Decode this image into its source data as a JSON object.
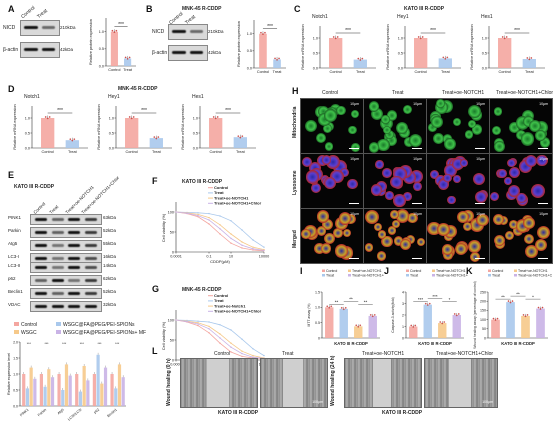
{
  "panels": {
    "A": {
      "letter": "A",
      "blot_labels": [
        "Control",
        "Treat"
      ],
      "row_labels": [
        "NICD",
        "β-actin"
      ],
      "size_labels": [
        "210kDa",
        "42kDa"
      ],
      "ylabel": "Relative protein expression",
      "categories": [
        "Control",
        "Treat"
      ],
      "sig": "***"
    },
    "B": {
      "letter": "B",
      "title": "MNK-45 R-CDDP",
      "blot_labels": [
        "Control",
        "Treat"
      ],
      "row_labels": [
        "NICD",
        "β-actin"
      ],
      "size_labels": [
        "210kDa",
        "42kDa"
      ],
      "ylabel": "Relative protein expression",
      "categories": [
        "Control",
        "Treat"
      ],
      "sig": "***"
    },
    "C": {
      "letter": "C",
      "title": "KATO III R-CDDP",
      "genes": [
        "Notch1",
        "Hey1",
        "Hes1"
      ],
      "ylabel": "Relative mRNA expression",
      "categories": [
        "Control",
        "Treat"
      ],
      "sig": "***"
    },
    "D": {
      "letter": "D",
      "title": "MNK-45 R-CDDP",
      "genes": [
        "Notch1",
        "Hey1",
        "Hes1"
      ],
      "ylabel": "Relative mRNA expression",
      "categories": [
        "Control",
        "Treat"
      ],
      "sig": "***"
    },
    "E": {
      "letter": "E",
      "title": "KATO III R-CDDP",
      "lane_labels": [
        "Control",
        "Treat",
        "Treat+oe-NOTCH1",
        "Treat+oe-NOTCH1+Chlor"
      ],
      "rows": [
        {
          "name": "PINK1",
          "size": "63kDa"
        },
        {
          "name": "Parkin",
          "size": "52kDa"
        },
        {
          "name": "Atg5",
          "size": "55kDa"
        },
        {
          "name": "LC3-I",
          "size": "16kDa"
        },
        {
          "name": "LC3-II",
          "size": "14kDa"
        },
        {
          "name": "p62",
          "size": "62kDa"
        },
        {
          "name": "Beclin1",
          "size": "52kDa"
        },
        {
          "name": "VDAC",
          "size": "32kDa"
        }
      ],
      "legend": [
        "Control",
        "WSGC@FA@PEG/PEI-SPIONs",
        "WSGC",
        "WSGC@FA@PEG/PEI-SPIONs+ MF"
      ],
      "ylabel": "Relative expression level",
      "categories": [
        "PINK1",
        "Parkin",
        "Atg5",
        "LC3II/LC3I",
        "p62",
        "Beclin1"
      ]
    },
    "F": {
      "letter": "F",
      "title": "KATO III R-CDDP",
      "legend": [
        "Control",
        "Treat",
        "Treat+oe-NOTCH1",
        "Treat+oe-NOTCH1+Chlor"
      ],
      "ylabel": "Cell viability (%)",
      "xlabel": "CDDP(μM)",
      "xticks": [
        "0.0001",
        "0.1",
        "10",
        "10000"
      ],
      "yticks": [
        "0",
        "50",
        "100",
        "150"
      ]
    },
    "G": {
      "letter": "G",
      "title": "MNK-45 R-CDDP",
      "legend": [
        "Control",
        "Treat",
        "Treat+oe-Notch1",
        "Treat+oe-NOTCH1+Chlor"
      ],
      "ylabel": "Cell viability (%)",
      "xlabel": "CDDP(μM)",
      "xticks": [
        "0.0001",
        "0.1",
        "10",
        "10000"
      ],
      "yticks": [
        "0",
        "50",
        "100",
        "150"
      ]
    },
    "H": {
      "letter": "H",
      "columns": [
        "Control",
        "Treat",
        "Treat+oe-NOTCH1",
        "Treat+oe-NOTCH1+Chlor"
      ],
      "rows": [
        "Mitochondria",
        "Lysosome",
        "Merged"
      ],
      "scale": "10μm"
    },
    "I": {
      "letter": "I",
      "legend": [
        "Control",
        "Treat",
        "Treat+oe-NOTCH1",
        "Treat+oe-NOTCH1+Chlor"
      ],
      "ylabel": "MTT assay (%)",
      "xlabel": "KATO III R-CDDP",
      "sigs": [
        "**",
        "**",
        "**"
      ]
    },
    "J": {
      "letter": "J",
      "legend": [
        "Control",
        "Treat",
        "Treat+oe-NOTCH1",
        "Treat+oe-NOTCH1+Chlor"
      ],
      "ylabel": "Caspase-3 activity(fold)",
      "xlabel": "KATO III R-CDDP",
      "sigs": [
        "***",
        "***",
        "*"
      ]
    },
    "K": {
      "letter": "K",
      "legend": [
        "Control",
        "Treat",
        "Treat+oe-NOTCH1",
        "Treat+oe-NOTCH1+Chlor"
      ],
      "ylabel": "Wound healing assay (percentage of control)",
      "xlabel": "KATO III R-CDDP",
      "sigs": [
        "**",
        "**",
        "*"
      ]
    },
    "L": {
      "letter": "L",
      "columns": [
        "Control",
        "Treat",
        "Treat+oe-NOTCH1",
        "Treat+oe-NOTCH1+Chlor"
      ],
      "rows": [
        "Wound healing (0 h)",
        "Wound healing (24 h)"
      ],
      "xlabel": "KATO III R-CDDP",
      "scale": "100μm"
    }
  },
  "colors": {
    "control": "#f4a6a0",
    "treat": "#a9c8ec",
    "oe": "#f6c98a",
    "chlor": "#c9b3e6"
  },
  "chart_data": [
    {
      "id": "A",
      "type": "bar",
      "categories": [
        "Control",
        "Treat"
      ],
      "values": [
        1.0,
        0.22
      ],
      "ylim": [
        0,
        1.4
      ]
    },
    {
      "id": "B",
      "type": "bar",
      "categories": [
        "Control",
        "Treat"
      ],
      "values": [
        1.0,
        0.25
      ],
      "ylim": [
        0,
        1.4
      ]
    },
    {
      "id": "C",
      "type": "bar",
      "categories": [
        "Control",
        "Treat"
      ],
      "series": [
        {
          "name": "Notch1",
          "values": [
            1.0,
            0.28
          ]
        },
        {
          "name": "Hey1",
          "values": [
            1.0,
            0.32
          ]
        },
        {
          "name": "Hes1",
          "values": [
            1.0,
            0.3
          ]
        }
      ],
      "ylim": [
        0,
        1.4
      ]
    },
    {
      "id": "D",
      "type": "bar",
      "categories": [
        "Control",
        "Treat"
      ],
      "series": [
        {
          "name": "Notch1",
          "values": [
            1.0,
            0.26
          ]
        },
        {
          "name": "Hey1",
          "values": [
            1.0,
            0.33
          ]
        },
        {
          "name": "Hes1",
          "values": [
            1.0,
            0.36
          ]
        }
      ],
      "ylim": [
        0,
        1.4
      ]
    },
    {
      "id": "E",
      "type": "bar",
      "categories": [
        "PINK1",
        "Parkin",
        "Atg5",
        "LC3II/LC3I",
        "p62",
        "Beclin1"
      ],
      "series": [
        {
          "name": "Control",
          "values": [
            1.0,
            1.0,
            1.0,
            1.0,
            1.0,
            1.0
          ]
        },
        {
          "name": "WSGC@FA@PEG/PEI-SPIONs",
          "values": [
            0.55,
            0.6,
            0.5,
            0.45,
            1.6,
            0.55
          ]
        },
        {
          "name": "WSGC",
          "values": [
            1.2,
            1.15,
            1.3,
            1.25,
            0.7,
            1.3
          ]
        },
        {
          "name": "WSGC@FA@PEG/PEI-SPIONs+ MF",
          "values": [
            0.85,
            0.9,
            0.95,
            0.8,
            1.2,
            0.9
          ]
        }
      ],
      "ylim": [
        0,
        2.0
      ]
    },
    {
      "id": "F",
      "type": "line",
      "x": [
        0.0001,
        0.001,
        0.01,
        0.1,
        1,
        10,
        100,
        1000,
        10000
      ],
      "series": [
        {
          "name": "Control",
          "values": [
            100,
            96,
            88,
            70,
            45,
            22,
            10,
            5,
            3
          ]
        },
        {
          "name": "Treat",
          "values": [
            100,
            99,
            98,
            96,
            90,
            78,
            55,
            30,
            12
          ]
        },
        {
          "name": "Treat+oe-NOTCH1",
          "values": [
            100,
            98,
            94,
            86,
            68,
            45,
            25,
            12,
            6
          ]
        },
        {
          "name": "Treat+oe-NOTCH1+Chlor",
          "values": [
            100,
            97,
            91,
            80,
            58,
            34,
            17,
            8,
            4
          ]
        }
      ],
      "xscale": "log",
      "ylim": [
        0,
        150
      ]
    },
    {
      "id": "G",
      "type": "line",
      "x": [
        0.0001,
        0.001,
        0.01,
        0.1,
        1,
        10,
        100,
        1000,
        10000
      ],
      "series": [
        {
          "name": "Control",
          "values": [
            100,
            95,
            86,
            68,
            42,
            20,
            9,
            5,
            3
          ]
        },
        {
          "name": "Treat",
          "values": [
            100,
            99,
            97,
            95,
            88,
            75,
            52,
            28,
            11
          ]
        },
        {
          "name": "Treat+oe-Notch1",
          "values": [
            100,
            97,
            93,
            84,
            65,
            42,
            22,
            11,
            5
          ]
        },
        {
          "name": "Treat+oe-NOTCH1+Chlor",
          "values": [
            100,
            96,
            90,
            78,
            55,
            32,
            16,
            7,
            4
          ]
        }
      ],
      "xscale": "log",
      "ylim": [
        0,
        150
      ]
    },
    {
      "id": "I",
      "type": "bar",
      "categories": [
        "Control",
        "Treat",
        "Treat+oe-NOTCH1",
        "Treat+oe-NOTCH1+Chlor"
      ],
      "values": [
        1.0,
        0.95,
        0.38,
        0.72
      ],
      "ylim": [
        0,
        1.5
      ]
    },
    {
      "id": "J",
      "type": "bar",
      "categories": [
        "Control",
        "Treat",
        "Treat+oe-NOTCH1",
        "Treat+oe-NOTCH1+Chlor"
      ],
      "values": [
        1.0,
        2.9,
        1.3,
        2.0
      ],
      "ylim": [
        0,
        4
      ]
    },
    {
      "id": "K",
      "type": "bar",
      "categories": [
        "Control",
        "Treat",
        "Treat+oe-NOTCH1",
        "Treat+oe-NOTCH1+Chlor"
      ],
      "values": [
        100,
        195,
        120,
        160
      ],
      "ylim": [
        0,
        250
      ]
    }
  ]
}
